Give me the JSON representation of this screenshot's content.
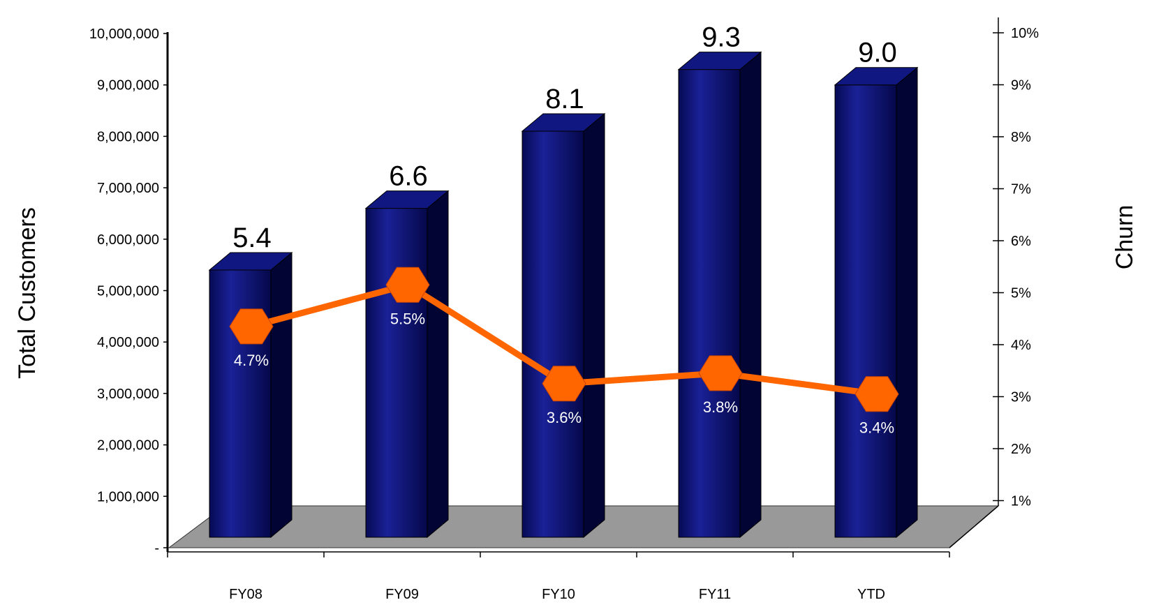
{
  "chart_data": {
    "type": "bar",
    "categories": [
      "FY08",
      "FY09",
      "FY10",
      "FY11",
      "YTD"
    ],
    "ylabel": "Total Customers",
    "y2label": "Churn",
    "ylim": [
      0,
      10000000
    ],
    "y2lim": [
      0,
      10
    ],
    "y_ticks": [
      "-",
      "1,000,000",
      "2,000,000",
      "3,000,000",
      "4,000,000",
      "5,000,000",
      "6,000,000",
      "7,000,000",
      "8,000,000",
      "9,000,000",
      "10,000,000"
    ],
    "y2_ticks": [
      "1%",
      "2%",
      "3%",
      "4%",
      "5%",
      "6%",
      "7%",
      "8%",
      "9%",
      "10%"
    ],
    "series": [
      {
        "type": "bar",
        "values": [
          5400000,
          6600000,
          8100000,
          9300000,
          9000000
        ],
        "labels": [
          "5.4",
          "6.6",
          "8.1",
          "9.3",
          "9.0"
        ],
        "color": "#0a0f6e"
      },
      {
        "type": "line",
        "axis": "right",
        "values": [
          4.7,
          5.5,
          3.6,
          3.8,
          3.4
        ],
        "labels": [
          "4.7%",
          "5.5%",
          "3.6%",
          "3.8%",
          "3.4%"
        ],
        "color": "#ff6600"
      }
    ],
    "floor_color": "#999999",
    "grid": false,
    "legend": "none"
  }
}
